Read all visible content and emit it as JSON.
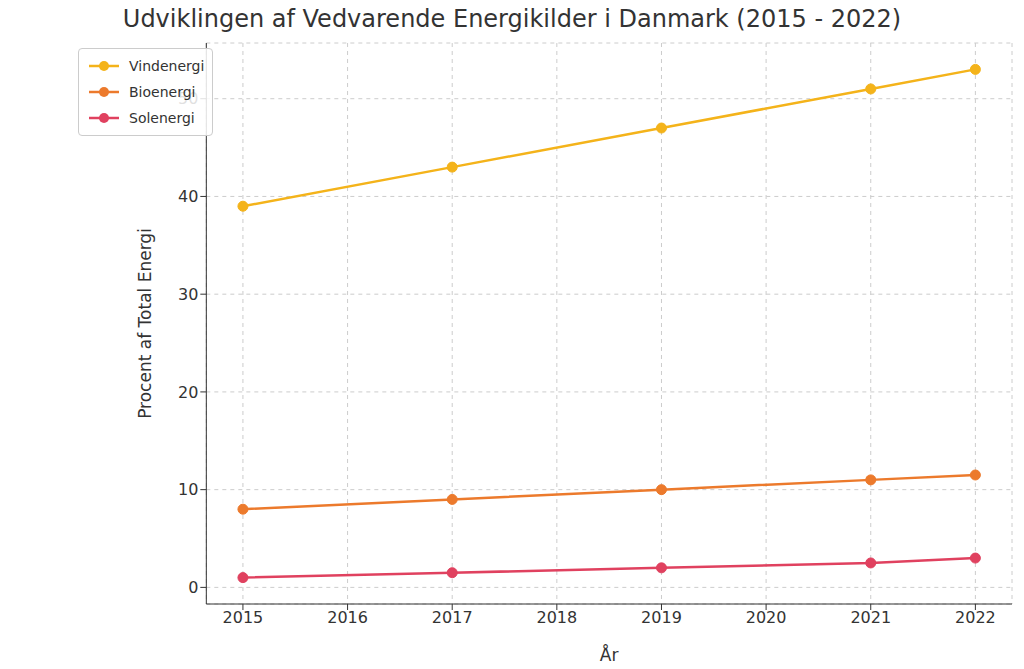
{
  "chart_data": {
    "type": "line",
    "title": "Udviklingen af Vedvarende Energikilder i Danmark (2015 - 2022)",
    "x_label": "År",
    "y_label": "Procent af Total Energi",
    "x": [
      2015,
      2017,
      2019,
      2021,
      2022
    ],
    "series": [
      {
        "name": "Vindenergi",
        "color": "#f4b31a",
        "values": [
          39,
          43,
          47,
          51,
          53
        ]
      },
      {
        "name": "Bioenergi",
        "color": "#ec7a2c",
        "values": [
          8,
          9,
          10,
          11,
          11.5
        ]
      },
      {
        "name": "Solenergi",
        "color": "#e0415f",
        "values": [
          1,
          1.5,
          2,
          2.5,
          3
        ]
      }
    ],
    "xlim": [
      2014.65,
      2022.35
    ],
    "xticks": [
      2015,
      2016,
      2017,
      2018,
      2019,
      2020,
      2021,
      2022
    ],
    "ylim": [
      -1.7,
      55.7
    ],
    "yticks": [
      0,
      10,
      20,
      30,
      40,
      50
    ],
    "grid": true,
    "legend": "upper left",
    "marker": "circle",
    "line_style": "solid"
  }
}
